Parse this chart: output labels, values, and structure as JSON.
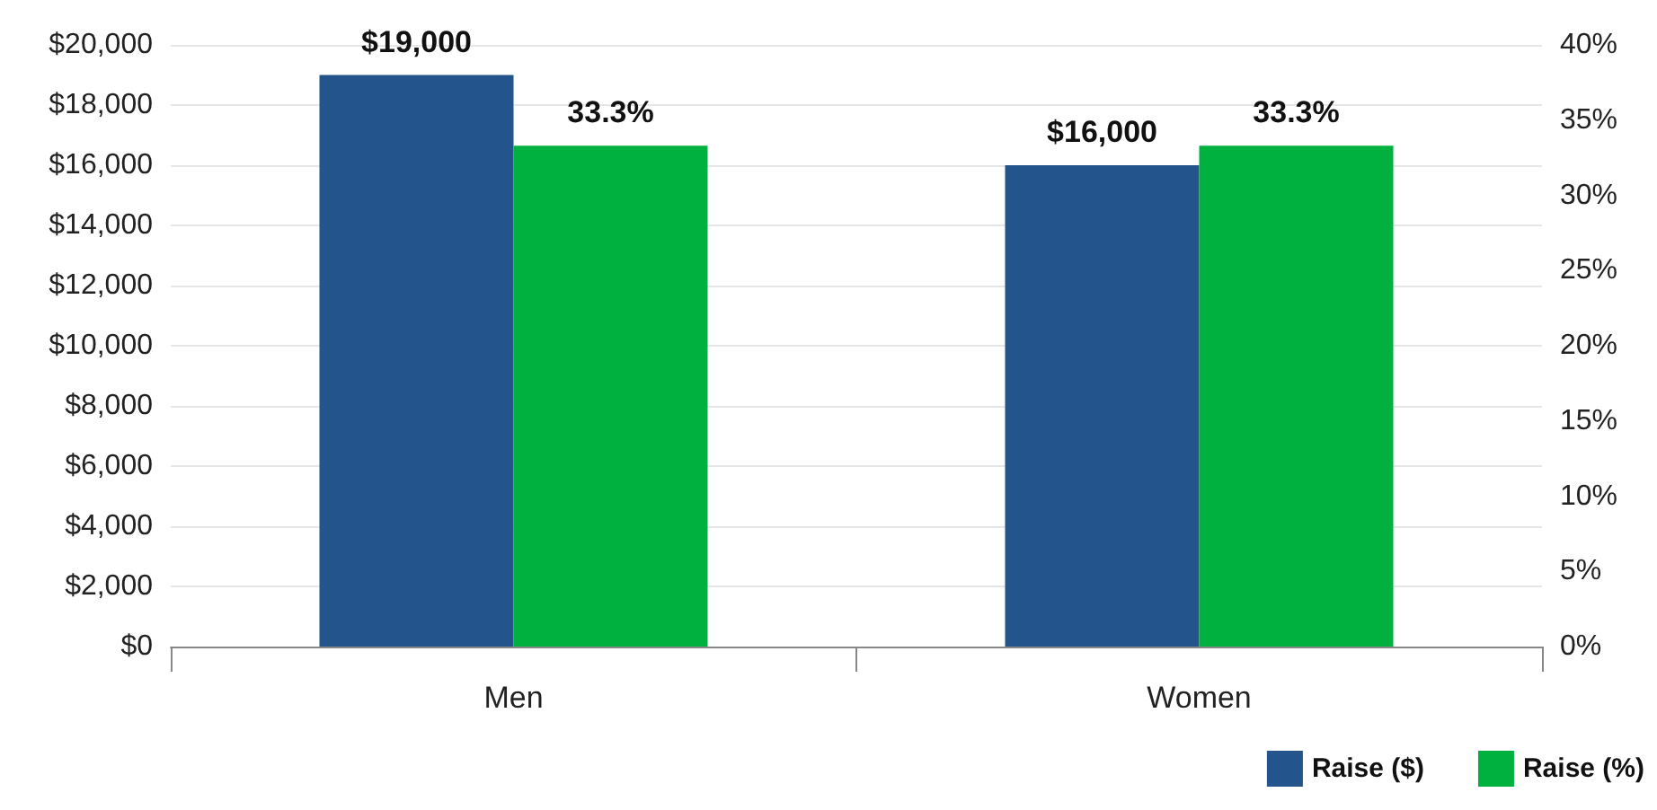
{
  "chart_data": {
    "type": "bar",
    "categories": [
      "Men",
      "Women"
    ],
    "series": [
      {
        "name": "Raise ($)",
        "color": "#24548c",
        "values": [
          19000,
          16000
        ],
        "value_labels": [
          "$19,000",
          "$16,000"
        ]
      },
      {
        "name": "Raise (%)",
        "color": "#00b140",
        "values": [
          33.3,
          33.3
        ],
        "value_labels": [
          "33.3%",
          "33.3%"
        ],
        "axis": "y2"
      }
    ],
    "ylim": [
      0,
      20000
    ],
    "yticks": [
      {
        "value": 0,
        "label": "$0"
      },
      {
        "value": 2000,
        "label": "$2,000"
      },
      {
        "value": 4000,
        "label": "$4,000"
      },
      {
        "value": 6000,
        "label": "$6,000"
      },
      {
        "value": 8000,
        "label": "$8,000"
      },
      {
        "value": 10000,
        "label": "$10,000"
      },
      {
        "value": 12000,
        "label": "$12,000"
      },
      {
        "value": 14000,
        "label": "$14,000"
      },
      {
        "value": 16000,
        "label": "$16,000"
      },
      {
        "value": 18000,
        "label": "$18,000"
      },
      {
        "value": 20000,
        "label": "$20,000"
      }
    ],
    "y2lim": [
      0,
      40
    ],
    "y2ticks": [
      {
        "value": 0,
        "label": "0%"
      },
      {
        "value": 5,
        "label": "5%"
      },
      {
        "value": 10,
        "label": "10%"
      },
      {
        "value": 15,
        "label": "15%"
      },
      {
        "value": 20,
        "label": "20%"
      },
      {
        "value": 25,
        "label": "25%"
      },
      {
        "value": 30,
        "label": "30%"
      },
      {
        "value": 35,
        "label": "35%"
      },
      {
        "value": 40,
        "label": "40%"
      }
    ],
    "grid": "y",
    "legend": "bottom right"
  }
}
